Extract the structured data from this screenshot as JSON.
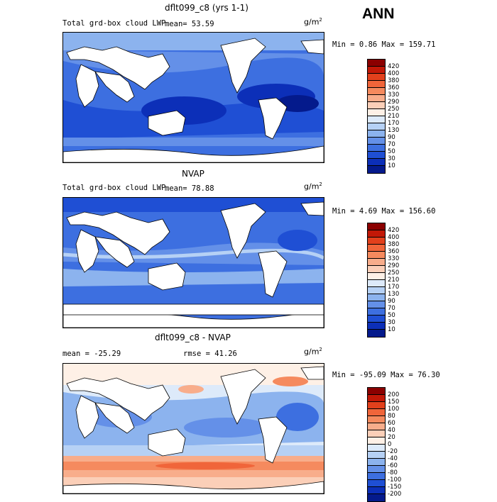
{
  "header": {
    "season": "ANN"
  },
  "panels": [
    {
      "title": "dflt099_c8 (yrs 1-1)",
      "variable": "Total grd-box cloud LWP",
      "stat_text": "mean=  53.59",
      "units_base": "g/m",
      "units_exp": "2",
      "minmax": "Min =   0.86 Max = 159.71",
      "colorbar": {
        "labels": [
          "420",
          "400",
          "380",
          "360",
          "330",
          "290",
          "250",
          "210",
          "170",
          "130",
          "90",
          "70",
          "50",
          "30",
          "10"
        ],
        "colors": [
          "#8b0000",
          "#c21807",
          "#e2401c",
          "#f0653a",
          "#f58a5e",
          "#f8ad8b",
          "#fbcfb8",
          "#fef0e6",
          "#ddeafa",
          "#b6d1f5",
          "#8cb3ee",
          "#6490e8",
          "#3d6fe0",
          "#1f4fd4",
          "#0c2fb8",
          "#041a8c"
        ]
      }
    },
    {
      "title": "NVAP",
      "variable": "Total grd-box cloud LWP",
      "stat_text": "mean=  78.88",
      "units_base": "g/m",
      "units_exp": "2",
      "minmax": "Min =   4.69 Max = 156.60",
      "colorbar": {
        "labels": [
          "420",
          "400",
          "380",
          "360",
          "330",
          "290",
          "250",
          "210",
          "170",
          "130",
          "90",
          "70",
          "50",
          "30",
          "10"
        ],
        "colors": [
          "#8b0000",
          "#c21807",
          "#e2401c",
          "#f0653a",
          "#f58a5e",
          "#f8ad8b",
          "#fbcfb8",
          "#fef0e6",
          "#ddeafa",
          "#b6d1f5",
          "#8cb3ee",
          "#6490e8",
          "#3d6fe0",
          "#1f4fd4",
          "#0c2fb8",
          "#041a8c"
        ]
      }
    },
    {
      "title": "dflt099_c8 - NVAP",
      "stat_text": "mean = -25.29",
      "stat2_text": "rmse =  41.26",
      "units_base": "g/m",
      "units_exp": "2",
      "minmax": "Min = -95.09 Max =  76.30",
      "colorbar": {
        "labels": [
          "200",
          "150",
          "100",
          "80",
          "60",
          "40",
          "20",
          "0",
          "-20",
          "-40",
          "-60",
          "-80",
          "-100",
          "-150",
          "-200"
        ],
        "colors": [
          "#8b0000",
          "#c21807",
          "#e2401c",
          "#f0653a",
          "#f58a5e",
          "#f8ad8b",
          "#fbcfb8",
          "#fef0e6",
          "#ddeafa",
          "#b6d1f5",
          "#8cb3ee",
          "#6490e8",
          "#3d6fe0",
          "#1f4fd4",
          "#0c2fb8",
          "#041a8c"
        ]
      }
    }
  ]
}
